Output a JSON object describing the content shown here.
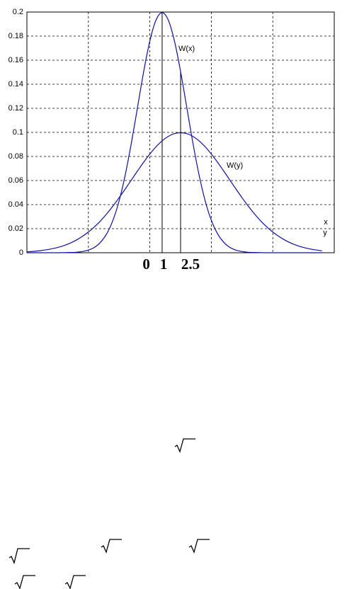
{
  "chart_data": {
    "type": "line",
    "x": [
      -10,
      -9.5,
      -9,
      -8.5,
      -8,
      -7.5,
      -7,
      -6.5,
      -6,
      -5.5,
      -5,
      -4.5,
      -4,
      -3.5,
      -3,
      -2.5,
      -2,
      -1.5,
      -1,
      -0.5,
      0,
      0.5,
      1,
      1.5,
      2,
      2.5,
      3,
      3.5,
      4,
      4.5,
      5,
      5.5,
      6,
      6.5,
      7,
      7.5,
      8,
      8.5,
      9,
      9.5,
      10,
      10.5,
      11,
      11.5,
      12,
      12.5,
      13,
      13.5,
      14
    ],
    "series": [
      {
        "name": "W(x)",
        "color": "#1010a0",
        "values": [
          0,
          0,
          0,
          0,
          0,
          0,
          0.0001,
          0.0002,
          0.0004,
          0.001,
          0.0022,
          0.0045,
          0.0088,
          0.0159,
          0.027,
          0.0431,
          0.0648,
          0.0913,
          0.121,
          0.1506,
          0.176,
          0.1933,
          0.1995,
          0.1933,
          0.176,
          0.1506,
          0.121,
          0.0913,
          0.0648,
          0.0431,
          0.027,
          0.0159,
          0.0088,
          0.0045,
          0.0022,
          0.001,
          0.0004,
          0.0002,
          0.0001,
          0,
          0,
          0,
          0,
          0,
          0,
          0,
          0,
          0,
          0
        ]
      },
      {
        "name": "W(y)",
        "color": "#1010a0",
        "values": [
          0.0008,
          0.0011,
          0.0016,
          0.0023,
          0.0032,
          0.0044,
          0.0059,
          0.0079,
          0.0104,
          0.0135,
          0.0172,
          0.0216,
          0.0266,
          0.0324,
          0.0388,
          0.0457,
          0.053,
          0.0605,
          0.068,
          0.0753,
          0.082,
          0.088,
          0.093,
          0.0967,
          0.099,
          0.0997,
          0.099,
          0.0967,
          0.093,
          0.088,
          0.082,
          0.0753,
          0.068,
          0.0605,
          0.053,
          0.0457,
          0.0388,
          0.0324,
          0.0266,
          0.0216,
          0.0172,
          0.0135,
          0.0104,
          0.0079,
          0.0059,
          0.0044,
          0.0032,
          0.0023,
          0.0016
        ]
      }
    ],
    "xlim": [
      -10,
      15
    ],
    "xticks": [
      0,
      1,
      2.5
    ],
    "xgrid": [
      -5,
      0,
      5,
      10
    ],
    "ylim": [
      0,
      0.2
    ],
    "yticks": [
      0,
      0.02,
      0.04,
      0.06,
      0.08,
      0.1,
      0.12,
      0.14,
      0.16,
      0.18,
      0.2
    ],
    "grid": true,
    "x_label": "x",
    "y_label": "y"
  }
}
